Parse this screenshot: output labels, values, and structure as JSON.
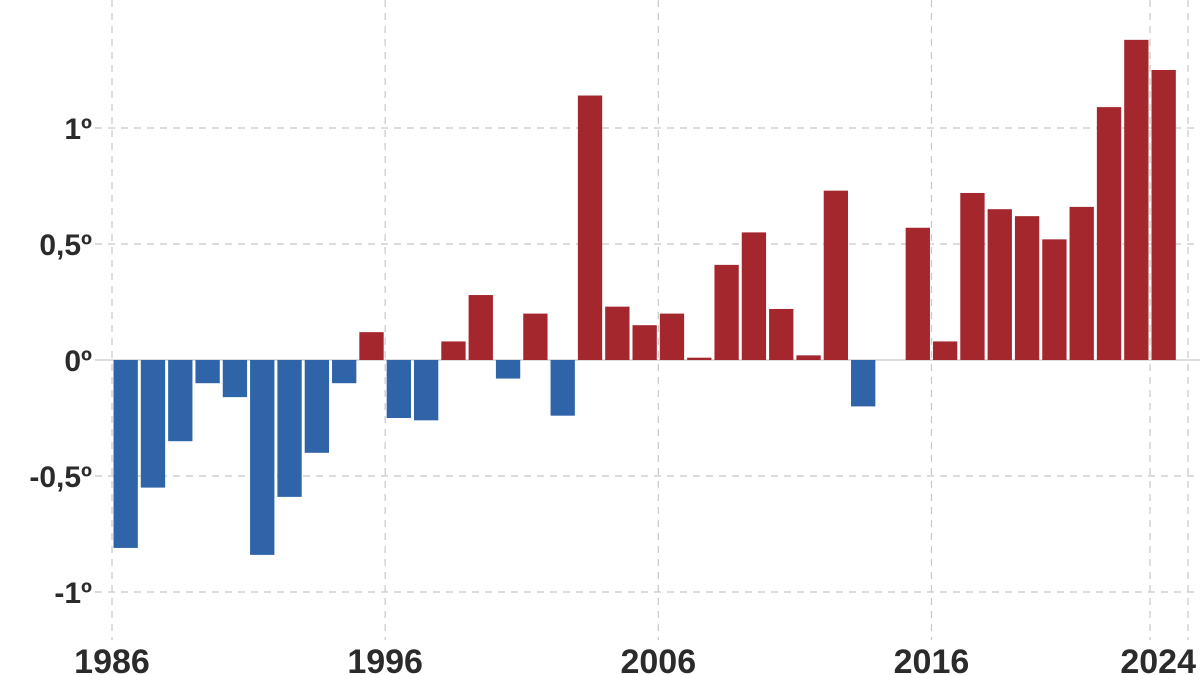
{
  "chart_data": {
    "type": "bar",
    "x_ticks": [
      "1986",
      "1996",
      "2006",
      "2016",
      "2024"
    ],
    "y_ticks": [
      {
        "value": 1,
        "label": "1º"
      },
      {
        "value": 0.5,
        "label": "0,5º"
      },
      {
        "value": 0,
        "label": "0º"
      },
      {
        "value": -0.5,
        "label": "-0,5º"
      },
      {
        "value": -1,
        "label": "-1º"
      }
    ],
    "ylim": [
      -1.1,
      1.55
    ],
    "xlim": [
      1985.5,
      2024.5
    ],
    "grid": true,
    "colors": {
      "positive": "#a4272e",
      "negative": "#2f64a8"
    },
    "series": [
      {
        "x": [
          1986,
          1987,
          1988,
          1989,
          1990,
          1991,
          1992,
          1993,
          1994,
          1995,
          1996,
          1997,
          1998,
          1999,
          2000,
          2001,
          2002,
          2003,
          2004,
          2005,
          2006,
          2007,
          2008,
          2009,
          2010,
          2011,
          2012,
          2013,
          2014,
          2015,
          2016,
          2017,
          2018,
          2019,
          2020,
          2021,
          2022,
          2023,
          2024
        ],
        "values": [
          -0.81,
          -0.55,
          -0.35,
          -0.1,
          -0.16,
          -0.84,
          -0.59,
          -0.4,
          -0.1,
          0.12,
          -0.25,
          -0.26,
          0.08,
          0.28,
          -0.08,
          0.2,
          -0.24,
          1.14,
          0.23,
          0.15,
          0.2,
          0.01,
          0.41,
          0.55,
          0.22,
          0.02,
          0.73,
          -0.2,
          0.0,
          0.57,
          0.08,
          0.72,
          0.65,
          0.62,
          0.52,
          0.66,
          1.09,
          1.38,
          1.25
        ]
      }
    ]
  }
}
